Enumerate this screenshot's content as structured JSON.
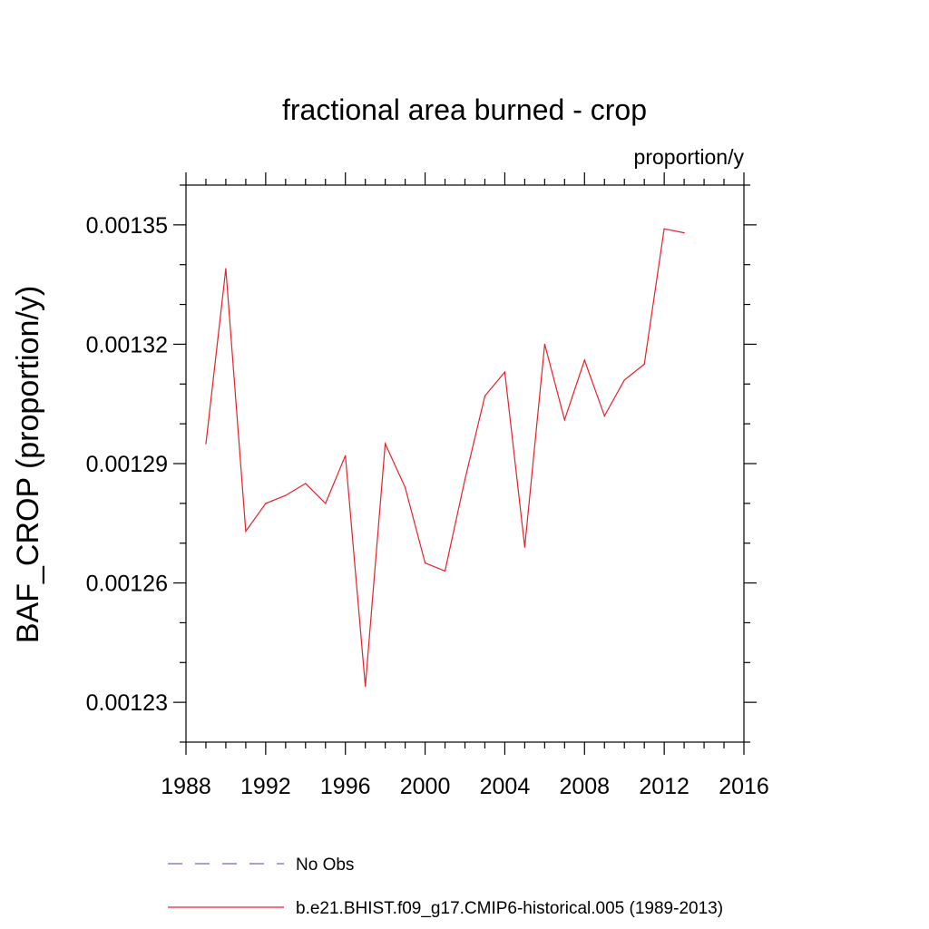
{
  "chart_data": {
    "type": "line",
    "title": "fractional area burned - crop",
    "units": "proportion/y",
    "ylabel": "BAF_CROP  (proportion/y)",
    "xlabel": "",
    "xlim": [
      1988,
      2016
    ],
    "ylim": [
      0.00122,
      0.00136
    ],
    "xticks": [
      1988,
      1992,
      1996,
      2000,
      2004,
      2008,
      2012,
      2016
    ],
    "xtick_labels": [
      "1988",
      "1992",
      "1996",
      "2000",
      "2004",
      "2008",
      "2012",
      "2016"
    ],
    "yticks": [
      0.00123,
      0.00126,
      0.00129,
      0.00132,
      0.00135
    ],
    "ytick_labels": [
      "0.00123",
      "0.00126",
      "0.00129",
      "0.00132",
      "0.00135"
    ],
    "series": [
      {
        "name": "No Obs",
        "color": "#6c6cc0",
        "dash": "dashed",
        "x": [],
        "values": []
      },
      {
        "name": "b.e21.BHIST.f09_g17.CMIP6-historical.005 (1989-2013)",
        "color": "#e8202a",
        "dash": "solid",
        "x": [
          1989,
          1990,
          1991,
          1992,
          1993,
          1994,
          1995,
          1996,
          1997,
          1998,
          1999,
          2000,
          2001,
          2002,
          2003,
          2004,
          2005,
          2006,
          2007,
          2008,
          2009,
          2010,
          2011,
          2012,
          2013
        ],
        "values": [
          0.001295,
          0.001339,
          0.001273,
          0.00128,
          0.001282,
          0.001285,
          0.00128,
          0.001292,
          0.001234,
          0.001295,
          0.001284,
          0.001265,
          0.001263,
          0.001286,
          0.001307,
          0.001313,
          0.001269,
          0.00132,
          0.001301,
          0.001316,
          0.001302,
          0.001311,
          0.001315,
          0.001349,
          0.001348
        ]
      }
    ],
    "legend_position": "bottom"
  }
}
